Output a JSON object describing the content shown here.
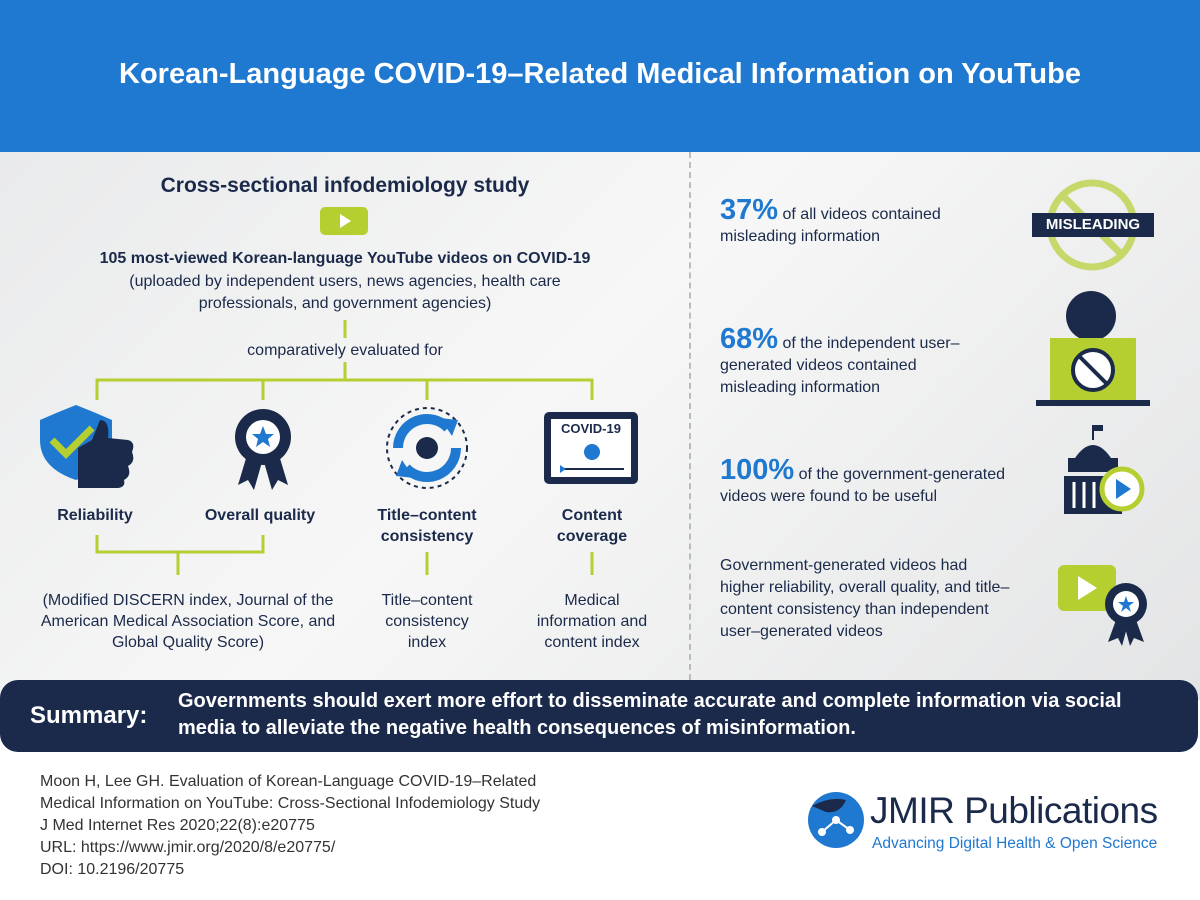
{
  "header": {
    "title": "Korean-Language COVID-19–Related Medical Information on YouTube"
  },
  "study": {
    "design": "Cross-sectional infodemiology study",
    "sample": "105 most-viewed Korean-language YouTube videos on COVID-19",
    "sample_note": "(uploaded by independent users, news agencies, health care professionals, and government agencies)",
    "connector": "comparatively evaluated for",
    "icon_text": "COVID-19",
    "criteria": [
      "Reliability",
      "Overall quality",
      "Title–content consistency",
      "Content coverage"
    ],
    "measures": [
      "(Modified DISCERN index, Journal of the American Medical Association Score, and Global Quality Score)",
      "Title–content consistency index",
      "Medical information and content index"
    ]
  },
  "findings": [
    {
      "stat": "37%",
      "text": "of all videos contained misleading information",
      "badge": "MISLEADING"
    },
    {
      "stat": "68%",
      "text": "of the independent user–generated videos contained misleading information"
    },
    {
      "stat": "100%",
      "text": "of the government-generated videos were found to be useful"
    },
    {
      "text": "Government-generated videos had higher reliability, overall quality, and title–content consistency than independent user–generated videos"
    }
  ],
  "summary": {
    "label": "Summary:",
    "text": "Governments should exert more effort to disseminate accurate and complete information via social media to alleviate the negative health consequences of misinformation."
  },
  "citation": [
    "Moon H, Lee GH. Evaluation of Korean-Language COVID-19–Related",
    "Medical Information on YouTube: Cross-Sectional Infodemiology Study",
    "J Med Internet Res 2020;22(8):e20775",
    "URL: https://www.jmir.org/2020/8/e20775/",
    "DOI: 10.2196/20775"
  ],
  "publisher": {
    "name": "JMIR Publications",
    "tagline": "Advancing Digital Health & Open Science"
  }
}
